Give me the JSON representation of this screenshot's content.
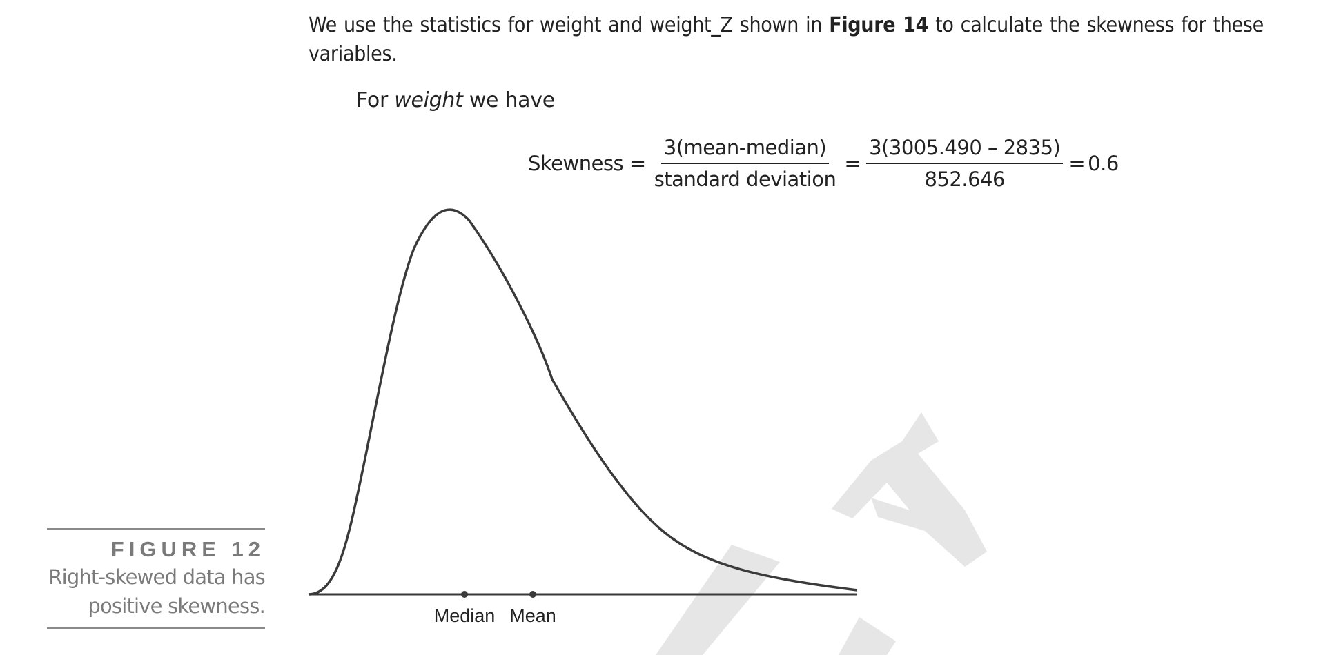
{
  "intro": {
    "before": "We use the statistics for weight and weight_Z shown in ",
    "figure_ref": "Figure 14",
    "after": " to calculate the skewness for these variables."
  },
  "for_line": {
    "prefix": "For ",
    "variable": "weight",
    "suffix": " we have"
  },
  "formula": {
    "lhs": "Skewness =",
    "frac1_num": "3(mean-median)",
    "frac1_den": "standard deviation",
    "eq1": "=",
    "frac2_num": "3(3005.490 – 2835)",
    "frac2_den": "852.646",
    "eq2": "=",
    "result": "0.6"
  },
  "caption": {
    "label": "FIGURE 12",
    "text_line1": "Right-skewed data has",
    "text_line2": "positive skewness."
  },
  "figure": {
    "markers": [
      {
        "label": "Median"
      },
      {
        "label": "Mean"
      }
    ],
    "curve_color": "#3a3a3a",
    "watermark_color": "#e6e6e6"
  }
}
